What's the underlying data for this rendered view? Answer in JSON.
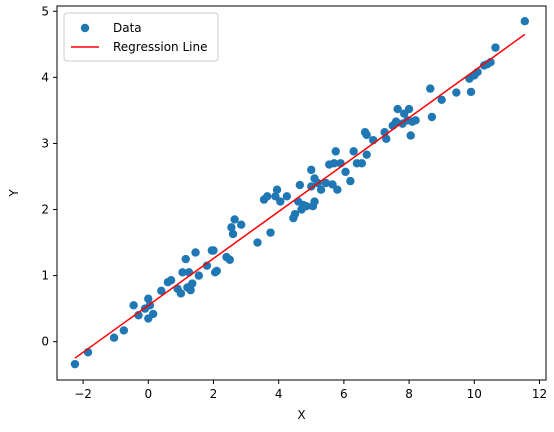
{
  "chart_data": {
    "type": "scatter",
    "xlabel": "X",
    "ylabel": "Y",
    "xlim": [
      -2.8,
      12.2
    ],
    "ylim": [
      -0.58,
      5.08
    ],
    "xticks": [
      -2,
      0,
      2,
      4,
      6,
      8,
      10,
      12
    ],
    "yticks": [
      0,
      1,
      2,
      3,
      4,
      5
    ],
    "grid": false,
    "legend_position": "upper-left",
    "series": [
      {
        "name": "Data",
        "kind": "scatter",
        "color": "#1f77b4",
        "points": [
          [
            -2.25,
            -0.34
          ],
          [
            -1.85,
            -0.16
          ],
          [
            -1.05,
            0.06
          ],
          [
            -0.75,
            0.17
          ],
          [
            -0.45,
            0.55
          ],
          [
            -0.3,
            0.4
          ],
          [
            -0.1,
            0.5
          ],
          [
            0.0,
            0.35
          ],
          [
            0.0,
            0.65
          ],
          [
            0.05,
            0.55
          ],
          [
            0.15,
            0.42
          ],
          [
            0.4,
            0.77
          ],
          [
            0.6,
            0.9
          ],
          [
            0.7,
            0.93
          ],
          [
            0.9,
            0.8
          ],
          [
            1.0,
            0.73
          ],
          [
            1.05,
            1.05
          ],
          [
            1.15,
            1.25
          ],
          [
            1.2,
            0.82
          ],
          [
            1.25,
            1.05
          ],
          [
            1.3,
            0.78
          ],
          [
            1.35,
            0.88
          ],
          [
            1.45,
            1.35
          ],
          [
            1.55,
            1.0
          ],
          [
            1.8,
            1.15
          ],
          [
            1.95,
            1.38
          ],
          [
            2.0,
            1.38
          ],
          [
            2.05,
            1.05
          ],
          [
            2.1,
            1.07
          ],
          [
            2.4,
            1.28
          ],
          [
            2.5,
            1.24
          ],
          [
            2.55,
            1.73
          ],
          [
            2.6,
            1.63
          ],
          [
            2.65,
            1.85
          ],
          [
            2.85,
            1.77
          ],
          [
            3.35,
            1.5
          ],
          [
            3.55,
            2.15
          ],
          [
            3.65,
            2.2
          ],
          [
            3.75,
            1.65
          ],
          [
            3.9,
            2.2
          ],
          [
            3.95,
            2.3
          ],
          [
            4.05,
            2.12
          ],
          [
            4.25,
            2.2
          ],
          [
            4.45,
            1.87
          ],
          [
            4.5,
            1.93
          ],
          [
            4.6,
            2.12
          ],
          [
            4.65,
            2.37
          ],
          [
            4.7,
            2.0
          ],
          [
            4.75,
            2.07
          ],
          [
            4.85,
            2.05
          ],
          [
            5.0,
            2.35
          ],
          [
            5.0,
            2.6
          ],
          [
            5.05,
            2.05
          ],
          [
            5.1,
            2.12
          ],
          [
            5.1,
            2.47
          ],
          [
            5.2,
            2.4
          ],
          [
            5.3,
            2.3
          ],
          [
            5.45,
            2.4
          ],
          [
            5.55,
            2.68
          ],
          [
            5.65,
            2.38
          ],
          [
            5.7,
            2.7
          ],
          [
            5.75,
            2.88
          ],
          [
            5.8,
            2.3
          ],
          [
            5.9,
            2.7
          ],
          [
            6.05,
            2.57
          ],
          [
            6.2,
            2.43
          ],
          [
            6.3,
            2.88
          ],
          [
            6.4,
            2.7
          ],
          [
            6.55,
            2.7
          ],
          [
            6.65,
            3.17
          ],
          [
            6.7,
            3.13
          ],
          [
            6.7,
            2.83
          ],
          [
            6.9,
            3.05
          ],
          [
            7.25,
            3.17
          ],
          [
            7.3,
            3.07
          ],
          [
            7.5,
            3.27
          ],
          [
            7.6,
            3.33
          ],
          [
            7.65,
            3.52
          ],
          [
            7.8,
            3.3
          ],
          [
            7.85,
            3.45
          ],
          [
            7.95,
            3.35
          ],
          [
            8.0,
            3.52
          ],
          [
            8.05,
            3.12
          ],
          [
            8.1,
            3.33
          ],
          [
            8.2,
            3.35
          ],
          [
            8.65,
            3.83
          ],
          [
            8.7,
            3.4
          ],
          [
            9.0,
            3.66
          ],
          [
            9.45,
            3.77
          ],
          [
            9.85,
            3.98
          ],
          [
            9.9,
            3.78
          ],
          [
            10.0,
            4.03
          ],
          [
            10.1,
            4.08
          ],
          [
            10.3,
            4.18
          ],
          [
            10.4,
            4.2
          ],
          [
            10.5,
            4.23
          ],
          [
            10.65,
            4.45
          ],
          [
            11.55,
            4.85
          ]
        ]
      },
      {
        "name": "Regression Line",
        "kind": "line",
        "color": "#ff0000",
        "points": [
          [
            -2.25,
            -0.25
          ],
          [
            11.55,
            4.65
          ]
        ]
      }
    ]
  }
}
